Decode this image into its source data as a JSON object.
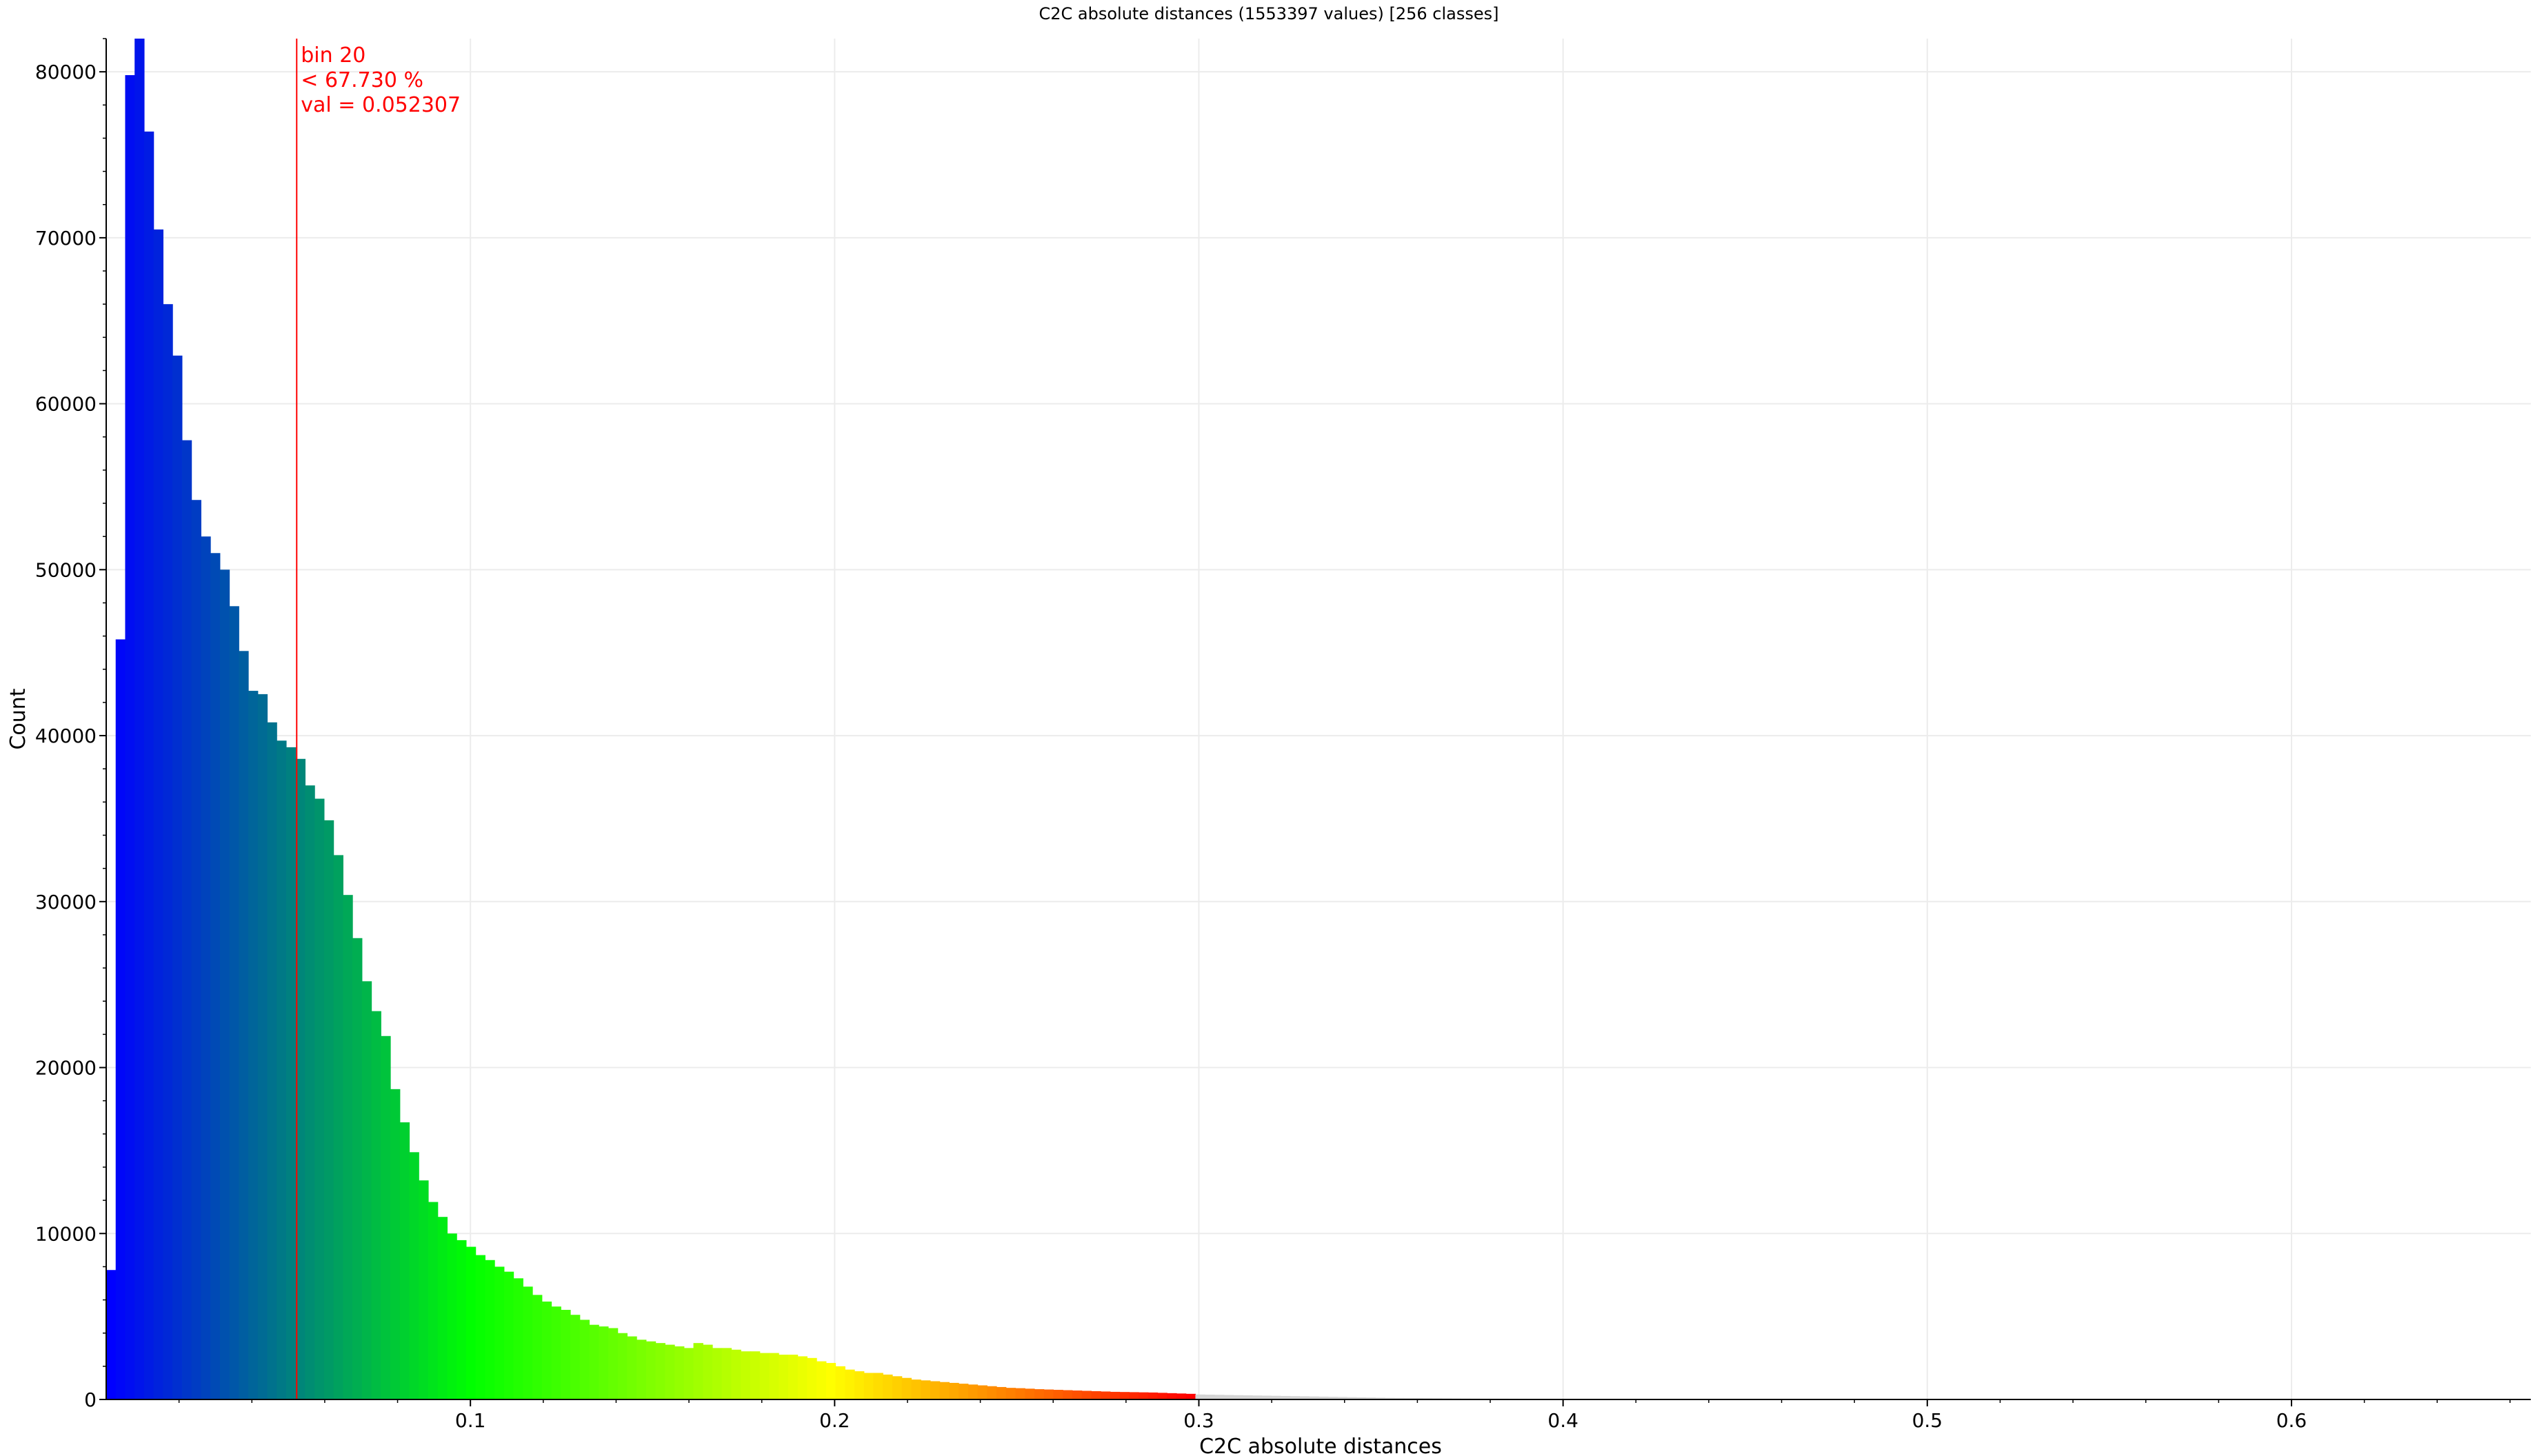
{
  "window": {
    "title": "C2C absolute distances (1553397 values)  [256 classes]"
  },
  "chart_data": {
    "type": "bar",
    "title": "C2C absolute distances (1553397 values)  [256 classes]",
    "xlabel": "C2C absolute distances",
    "ylabel": "Count",
    "xlim": [
      0.0,
      0.6657
    ],
    "ylim": [
      0,
      82000
    ],
    "x_ticks": [
      0.1,
      0.2,
      0.3,
      0.4,
      0.5,
      0.6
    ],
    "x_tick_labels": [
      "0.1",
      "0.2",
      "0.3",
      "0.4",
      "0.5",
      "0.6"
    ],
    "y_ticks": [
      0,
      10000,
      20000,
      30000,
      40000,
      50000,
      60000,
      70000,
      80000
    ],
    "y_tick_labels": [
      "0",
      "10000",
      "20000",
      "30000",
      "40000",
      "50000",
      "60000",
      "70000",
      "80000"
    ],
    "grid": true,
    "legend": "none",
    "bin_width": 0.0026004,
    "x_start": 0.0,
    "colored_bin_count": 115,
    "gray_color": "#d4d4d4",
    "color_stops": [
      "#0000ff",
      "#00ff00",
      "#ffff00",
      "#ff0000"
    ],
    "values": [
      7800,
      45800,
      79800,
      82000,
      76400,
      70500,
      66000,
      62900,
      57800,
      54200,
      52000,
      51000,
      50000,
      47800,
      45100,
      42700,
      42500,
      40800,
      39700,
      39300,
      38600,
      37000,
      36200,
      34900,
      32800,
      30400,
      27800,
      25200,
      23400,
      21900,
      18700,
      16700,
      14900,
      13200,
      11900,
      11000,
      10000,
      9600,
      9200,
      8700,
      8400,
      8000,
      7700,
      7300,
      6800,
      6300,
      5900,
      5600,
      5400,
      5100,
      4800,
      4500,
      4400,
      4300,
      4000,
      3800,
      3600,
      3500,
      3400,
      3300,
      3200,
      3100,
      3400,
      3300,
      3100,
      3100,
      3000,
      2900,
      2900,
      2800,
      2800,
      2700,
      2700,
      2600,
      2500,
      2300,
      2200,
      2000,
      1800,
      1700,
      1600,
      1600,
      1500,
      1400,
      1300,
      1200,
      1150,
      1100,
      1050,
      1000,
      950,
      900,
      850,
      800,
      750,
      700,
      680,
      650,
      620,
      600,
      580,
      560,
      540,
      520,
      500,
      480,
      460,
      450,
      440,
      430,
      420,
      400,
      380,
      360,
      340,
      300,
      290,
      280,
      270,
      260,
      250,
      240,
      230,
      220,
      210,
      200,
      190,
      180,
      170,
      160,
      150,
      140,
      130,
      120,
      110,
      100,
      95,
      90,
      85,
      80,
      75,
      70,
      65,
      60,
      55,
      50,
      48,
      46,
      44,
      42,
      40,
      38,
      36,
      34,
      32,
      30,
      28,
      26,
      24,
      22,
      20,
      19,
      18,
      17,
      16,
      15,
      14,
      13,
      12,
      11,
      10,
      10,
      9,
      9,
      8,
      8,
      7,
      7,
      6,
      6,
      5,
      5,
      5,
      4,
      4,
      4,
      3,
      3,
      3,
      3,
      2,
      2,
      2,
      2,
      2,
      2,
      1,
      1,
      1,
      1,
      1,
      1,
      1,
      1,
      1,
      1,
      1,
      1,
      1,
      1,
      1,
      1,
      1,
      1,
      1,
      1,
      1,
      1,
      1,
      1,
      1,
      1,
      1,
      1,
      1,
      1,
      1,
      1,
      1,
      1,
      1,
      1,
      1,
      1,
      1,
      1,
      1,
      1,
      1,
      1,
      1,
      1,
      1,
      1,
      1,
      1,
      1,
      1,
      1,
      1,
      1,
      1,
      1,
      1,
      1,
      1,
      1,
      1,
      1,
      1,
      1,
      1,
      1,
      1
    ],
    "marker": {
      "x": 0.052307,
      "color": "#ff0000",
      "line1": "bin 20",
      "line2": "< 67.730 %",
      "line3": "val = 0.052307"
    }
  }
}
